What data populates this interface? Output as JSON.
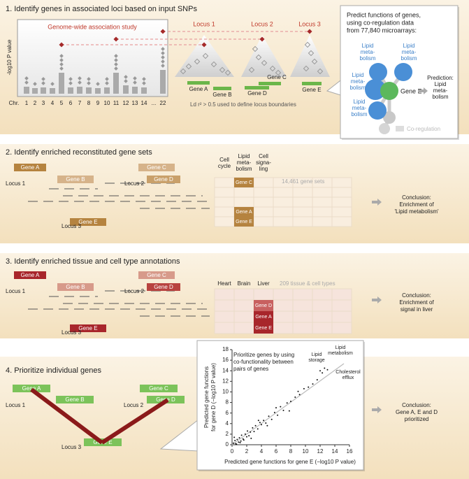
{
  "panel1": {
    "title": "1. Identify genes in associated loci based on input SNPs",
    "gwas_title": "Genome-wide association study",
    "ylabel": "-log10 P value",
    "chr_labels": [
      "Chr.",
      "1",
      "2",
      "3",
      "4",
      "5",
      "6",
      "7",
      "8",
      "9",
      "10",
      "11",
      "12",
      "13",
      "14",
      "...",
      "22"
    ],
    "loci": [
      "Locus 1",
      "Locus 2",
      "Locus 3"
    ],
    "genes": [
      "Gene A",
      "Gene B",
      "Gene C",
      "Gene D",
      "Gene E"
    ],
    "ld_note": "Ld r² > 0.5 used to define locus boundaries",
    "popup": {
      "intro": [
        "Predict functions of genes,",
        "using co-regulation data",
        "from 77,840 microarrays:"
      ],
      "lipid": [
        "Lipid",
        "meta-",
        "bolism"
      ],
      "gene": "Gene E",
      "prediction": [
        "Prediction:",
        "Lipid",
        "meta-",
        "bolism"
      ],
      "legend": "Co-regulation"
    }
  },
  "panel2": {
    "title": "2. Identify enriched reconstituted gene sets",
    "headers": [
      [
        "Cell",
        "cycle"
      ],
      [
        "Lipid",
        "meta-",
        "bolism"
      ],
      [
        "Cell",
        "signa-",
        "ling"
      ]
    ],
    "more": "14,461 gene sets",
    "conclusion": [
      "Conclusion:",
      "Enrichment of",
      "'Lipid metabolism'"
    ]
  },
  "panel3": {
    "title": "3. Identify enriched tissue and cell type annotations",
    "headers": [
      "Heart",
      "Brain",
      "Liver"
    ],
    "more": "209 tissue & cell types",
    "conclusion": [
      "Conclusion:",
      "Enrichment of",
      "signal in liver"
    ]
  },
  "panel4": {
    "title": "4. Prioritize individual genes",
    "conclusion": [
      "Conclusion:",
      "Gene A, E and D",
      "prioritized"
    ],
    "plot": {
      "title": [
        "Prioritize genes by using",
        "co-functionality between",
        "pairs of genes"
      ],
      "annotations": [
        [
          "Lipid",
          "metabolism"
        ],
        [
          "Lipid",
          "storage"
        ],
        [
          "Cholesterol",
          "efflux"
        ]
      ],
      "xlabel": "Predicted gene functions for gene E (−log10 P value)",
      "ylabel": [
        "Predicted gene functions",
        "for gene D (−log10 P value)"
      ],
      "xlim": [
        0,
        16
      ],
      "ylim": [
        0,
        18
      ],
      "xticks": [
        0,
        2,
        4,
        6,
        8,
        10,
        12,
        14,
        16
      ],
      "yticks": [
        0,
        2,
        4,
        6,
        8,
        10,
        12,
        14,
        16,
        18
      ],
      "x": [
        0.2,
        0.4,
        0.5,
        0.7,
        0.9,
        1.0,
        1.2,
        1.3,
        1.5,
        1.6,
        1.8,
        2.0,
        2.1,
        2.3,
        2.5,
        2.8,
        3.0,
        3.2,
        3.5,
        3.8,
        4.0,
        4.3,
        4.6,
        5.0,
        5.4,
        5.8,
        6.2,
        6.6,
        7.0,
        7.5,
        8.0,
        8.6,
        9.2,
        9.8,
        10.4,
        11.0,
        11.6,
        12.0,
        12.3,
        12.6,
        13.0,
        1.1,
        2.6,
        3.6,
        4.8,
        6.0,
        7.8,
        9.0,
        0.3,
        0.6
      ],
      "y": [
        0.3,
        0.8,
        0.2,
        1.0,
        0.5,
        1.3,
        0.7,
        1.8,
        1.1,
        0.9,
        2.0,
        1.5,
        2.6,
        1.7,
        2.4,
        3.2,
        2.5,
        3.6,
        3.0,
        4.2,
        3.8,
        4.6,
        4.1,
        5.4,
        4.8,
        6.1,
        5.6,
        7.2,
        6.5,
        7.9,
        8.2,
        9.0,
        9.5,
        10.6,
        10.9,
        11.5,
        12.3,
        14.0,
        13.6,
        14.5,
        14.2,
        0.4,
        1.2,
        4.6,
        3.6,
        7.0,
        6.4,
        10.1,
        1.4,
        0.1
      ]
    }
  }
}
